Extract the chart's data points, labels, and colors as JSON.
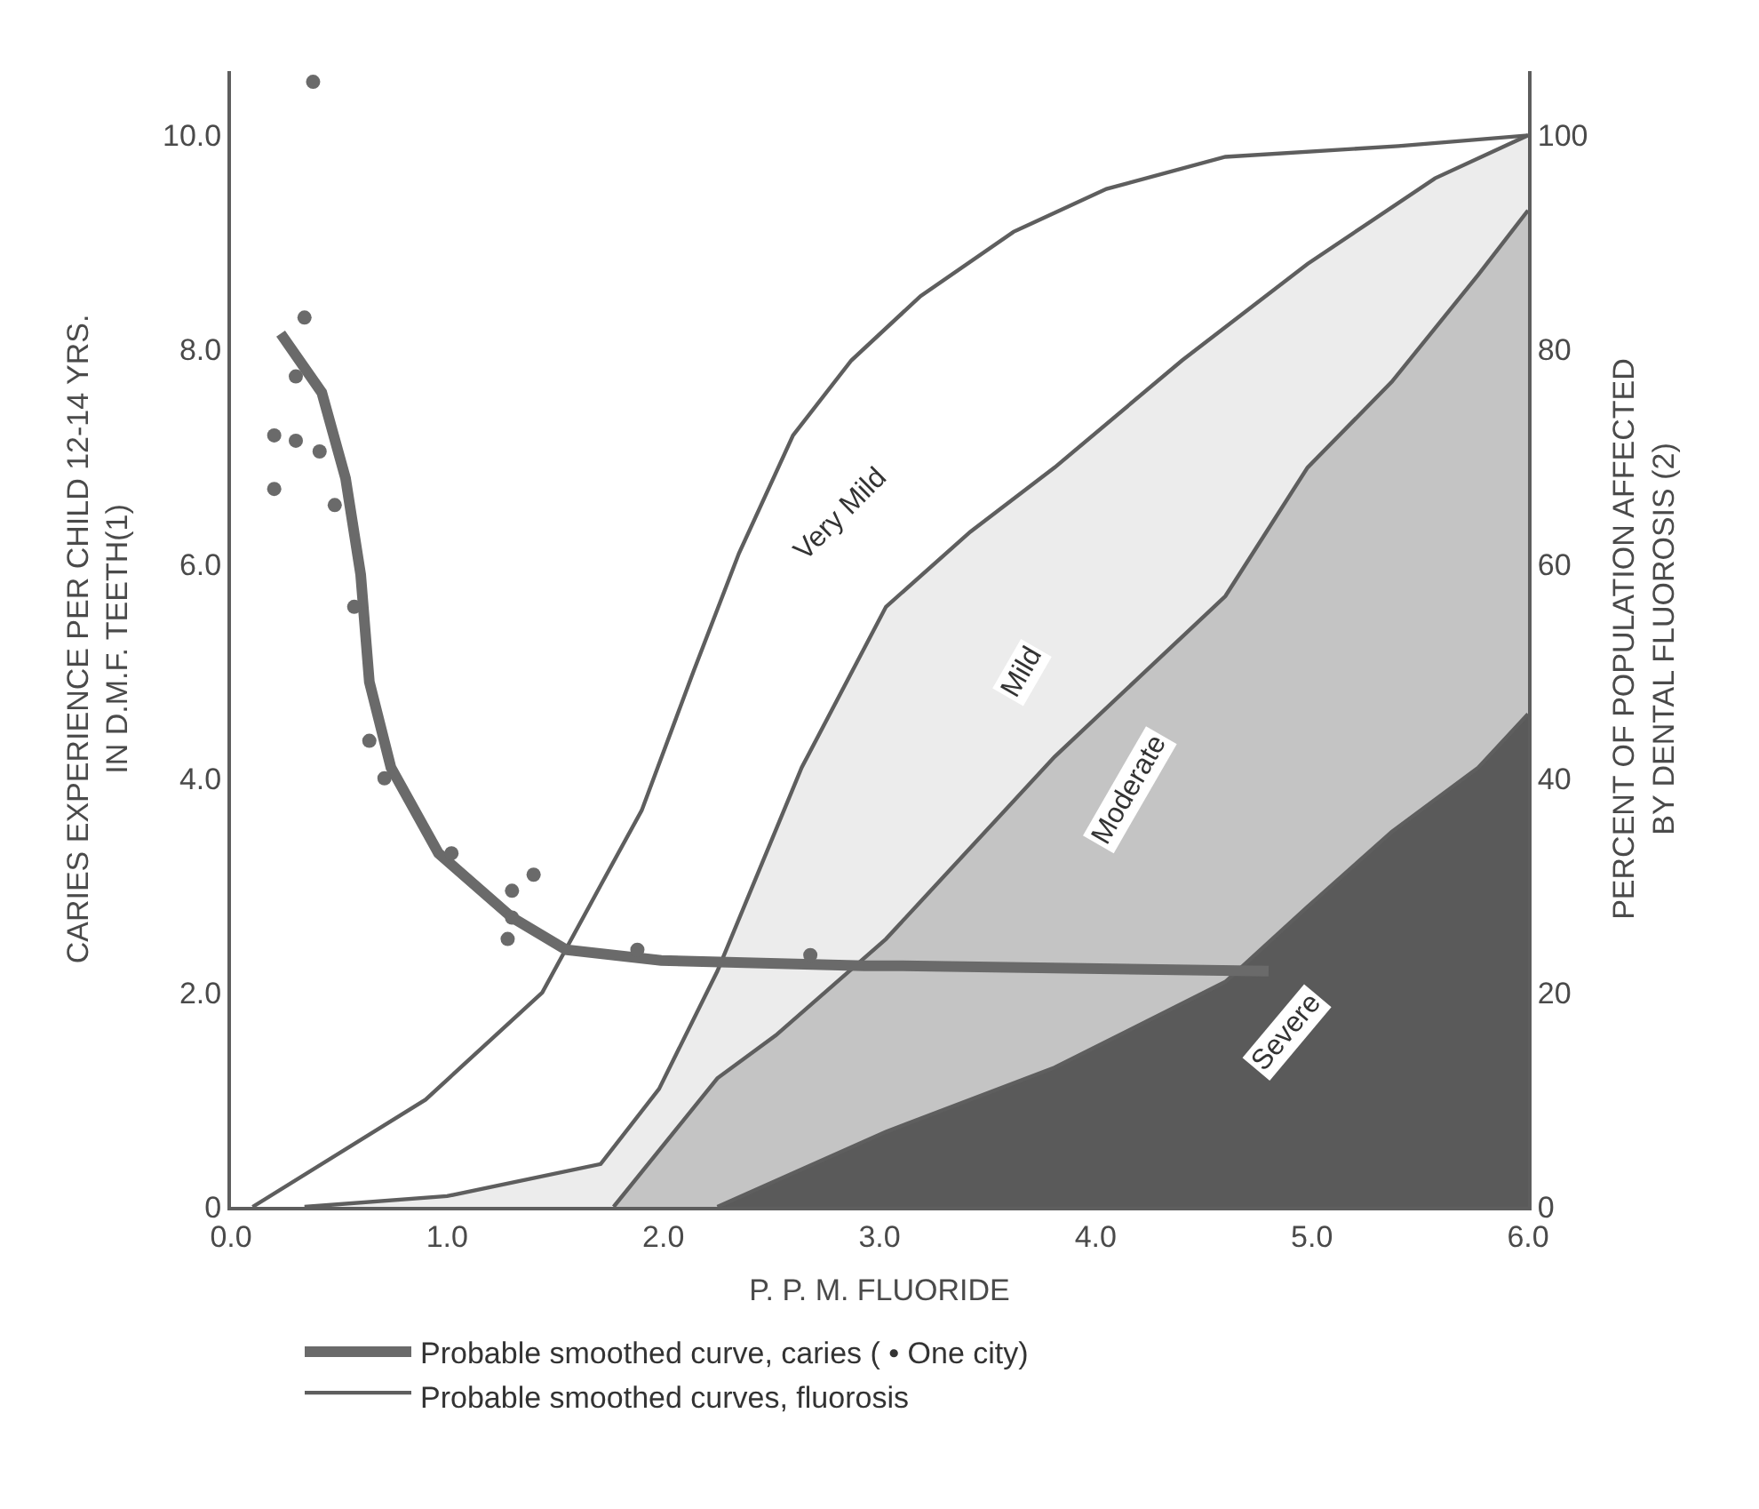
{
  "chart_data": {
    "type": "line",
    "xlabel": "P. P. M. FLUORIDE",
    "ylabel": "CARIES EXPERIENCE PER CHILD 12-14 YRS.\nIN D.M.F. TEETH(1)",
    "y2label": "PERCENT OF POPULATION AFFECTED\nBY DENTAL FLUOROSIS (2)",
    "xlim": [
      0,
      6
    ],
    "ylim": [
      0,
      10.6
    ],
    "y2lim": [
      0,
      106
    ],
    "xticks": [
      {
        "value": 0,
        "label": "0.0"
      },
      {
        "value": 1,
        "label": "1.0"
      },
      {
        "value": 2,
        "label": "2.0"
      },
      {
        "value": 3,
        "label": "3.0"
      },
      {
        "value": 4,
        "label": "4.0"
      },
      {
        "value": 5,
        "label": "5.0"
      },
      {
        "value": 6,
        "label": "6.0"
      }
    ],
    "yticks": [
      0,
      {
        "value": 2,
        "label": "2.0"
      },
      {
        "value": 4,
        "label": "4.0"
      },
      {
        "value": 6,
        "label": "6.0"
      },
      {
        "value": 8,
        "label": "8.0"
      },
      {
        "value": 10,
        "label": "10.0"
      }
    ],
    "y2ticks": [
      0,
      20,
      40,
      60,
      80,
      100
    ],
    "legend": "bottom",
    "marker": "none",
    "line_style": "solid",
    "series": [
      {
        "name": "Probable smoothed curve, caries ( • One city)",
        "color": "#6a6a6a",
        "x": [
          0.23,
          0.42,
          0.53,
          0.6,
          0.64,
          0.74,
          0.96,
          1.3,
          1.55,
          1.99,
          2.93,
          3.1,
          4.8
        ],
        "values": [
          8.15,
          7.6,
          6.8,
          5.9,
          4.9,
          4.1,
          3.3,
          2.7,
          2.4,
          2.3,
          2.25,
          2.25,
          2.2
        ]
      },
      {
        "type": "scatter",
        "marker": "circle",
        "color": "#6a6a6a",
        "x": [
          0.38,
          0.34,
          0.3,
          0.2,
          0.3,
          0.41,
          0.2,
          0.48,
          0.57,
          0.64,
          0.71,
          1.02,
          1.3,
          1.4,
          1.3,
          1.28,
          1.88,
          2.68
        ],
        "values": [
          10.5,
          8.3,
          7.75,
          7.2,
          7.15,
          7.05,
          6.7,
          6.55,
          5.6,
          4.35,
          4.0,
          3.3,
          2.95,
          3.1,
          2.7,
          2.5,
          2.4,
          2.35
        ]
      },
      {
        "name": "Probable smoothed curves, fluorosis",
        "type": "area",
        "axis": "y2",
        "color": "#ffffff",
        "x": [
          0.1,
          0.9,
          1.44,
          1.71,
          1.9,
          2.14,
          2.35,
          2.6,
          2.87,
          3.19,
          3.62,
          4.05,
          4.6,
          5.4,
          6.0
        ],
        "values": [
          0,
          10,
          20,
          30,
          37,
          50,
          61,
          72,
          79,
          85,
          91,
          95,
          98,
          99,
          100
        ]
      },
      {
        "type": "area",
        "axis": "y2",
        "color": "#ececec",
        "x": [
          0.34,
          1.0,
          1.71,
          1.98,
          2.25,
          2.64,
          3.03,
          3.42,
          3.81,
          4.4,
          4.98,
          5.57,
          6.0
        ],
        "values": [
          0,
          1,
          4,
          11,
          22,
          41,
          56,
          63,
          69,
          79,
          88,
          96,
          100
        ]
      },
      {
        "type": "area",
        "axis": "y2",
        "color": "#c4c4c4",
        "x": [
          1.77,
          2.25,
          2.52,
          3.03,
          3.81,
          4.6,
          4.98,
          5.37,
          5.77,
          6.0
        ],
        "values": [
          0,
          12,
          16,
          25,
          42,
          57,
          69,
          77,
          87,
          93
        ]
      },
      {
        "type": "area",
        "axis": "y2",
        "color": "#5a5a5a",
        "x": [
          2.25,
          3.03,
          3.81,
          4.6,
          4.98,
          5.37,
          5.77,
          6.0
        ],
        "values": [
          0,
          7,
          13,
          21,
          28,
          35,
          41,
          46
        ]
      }
    ],
    "annotations": [
      "Very Mild",
      "Mild",
      "Moderate",
      "Severe"
    ]
  }
}
